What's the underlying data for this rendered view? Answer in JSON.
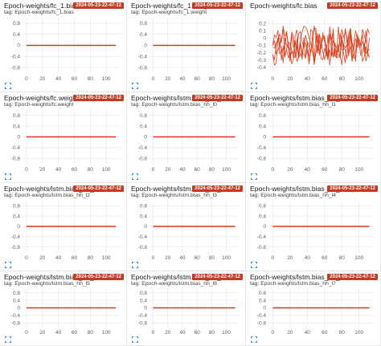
{
  "run_badge": "2024-05-23-22-47-12",
  "colors": {
    "series": "#d63a16",
    "badge": "#c23b22",
    "grid": "#e4e4e4",
    "expand_icon": "#3b8fd9"
  },
  "icons": {
    "expand": "expand-icon"
  },
  "cards": [
    {
      "title": "Epoch-weights/fc_1.bias",
      "tag": "tag: Epoch-weights/fc_1.bias",
      "show_tag": true,
      "chart_type": "flat"
    },
    {
      "title": "Epoch-weights/fc_1.weight",
      "tag": "tag: Epoch-weights/fc_1.weight",
      "show_tag": true,
      "chart_type": "flat"
    },
    {
      "title": "Epoch-weights/fc.bias",
      "tag": "",
      "show_tag": false,
      "chart_type": "noisy"
    },
    {
      "title": "Epoch-weights/fc.weight",
      "tag": "tag: Epoch-weights/fc.weight",
      "show_tag": true,
      "chart_type": "flat"
    },
    {
      "title": "Epoch-weights/lstm.bias_hh_l0",
      "tag": "tag: Epoch-weights/lstm.bias_hh_l0",
      "show_tag": true,
      "chart_type": "flat"
    },
    {
      "title": "Epoch-weights/lstm.bias_hh_l1",
      "tag": "tag: Epoch-weights/lstm.bias_hh_l1",
      "show_tag": true,
      "chart_type": "flat"
    },
    {
      "title": "Epoch-weights/lstm.bias_hh_l2",
      "tag": "tag: Epoch-weights/lstm.bias_hh_l2",
      "show_tag": true,
      "chart_type": "flat"
    },
    {
      "title": "Epoch-weights/lstm.bias_hh_l3",
      "tag": "tag: Epoch-weights/lstm.bias_hh_l3",
      "show_tag": true,
      "chart_type": "flat"
    },
    {
      "title": "Epoch-weights/lstm.bias_hh_l4",
      "tag": "tag: Epoch-weights/lstm.bias_hh_l4",
      "show_tag": true,
      "chart_type": "flat"
    },
    {
      "title": "Epoch-weights/lstm.bias_hh_l5",
      "tag": "tag: Epoch-weights/lstm.bias_hh_l5",
      "show_tag": true,
      "chart_type": "flat"
    },
    {
      "title": "Epoch-weights/lstm.bias_hh_l6",
      "tag": "tag: Epoch-weights/lstm.bias_hh_l6",
      "show_tag": true,
      "chart_type": "flat"
    },
    {
      "title": "Epoch-weights/lstm.bias_hh_l7",
      "tag": "tag: Epoch-weights/lstm.bias_hh_l7",
      "show_tag": true,
      "chart_type": "flat"
    }
  ],
  "chart_data": {
    "type": "line",
    "flat": {
      "y_ticks": [
        "0.8",
        "0.4",
        "0",
        "-0.4",
        "-0.8"
      ],
      "y_tick_values": [
        0.8,
        0.4,
        0,
        -0.4,
        -0.8
      ],
      "ylim": [
        -1.0,
        1.0
      ],
      "x_ticks": [
        "0",
        "20",
        "40",
        "60",
        "80",
        "100"
      ],
      "x_tick_values": [
        0,
        20,
        40,
        60,
        80,
        100
      ],
      "xlim": [
        -5,
        118
      ],
      "series": [
        {
          "x": [
            0,
            112
          ],
          "y": [
            0,
            0
          ]
        }
      ]
    },
    "noisy": {
      "y_ticks": [
        "0.2",
        "0.1",
        "0",
        "-0.1",
        "-0.2",
        "-0.3",
        "-0.4"
      ],
      "y_tick_values": [
        0.2,
        0.1,
        0,
        -0.1,
        -0.2,
        -0.3,
        -0.4
      ],
      "ylim": [
        -0.48,
        0.28
      ],
      "x_ticks": [
        "0",
        "20",
        "40",
        "60",
        "80",
        "100"
      ],
      "x_tick_values": [
        0,
        20,
        40,
        60,
        80,
        100
      ],
      "xlim": [
        -5,
        118
      ],
      "x_range": [
        0,
        112
      ],
      "y_range_estimate": [
        -0.4,
        0.2
      ],
      "series_count": 5
    }
  }
}
